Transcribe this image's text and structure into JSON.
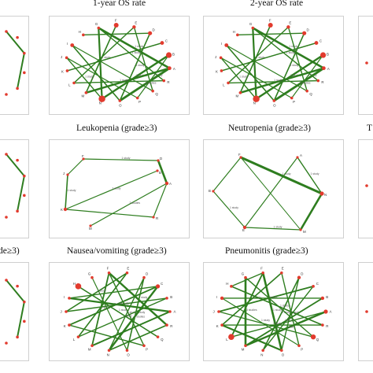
{
  "colors": {
    "edge": "#2e7d1f",
    "node": "#e23b2e",
    "frame": "#cfcfcf"
  },
  "titles": {
    "os1": "1-year OS rate",
    "os2": "2-year OS rate",
    "leukopenia": "Leukopenia (grade≥3)",
    "neutropenia": "Neutropenia (grade≥3)",
    "right_partial": "T",
    "left_partial": "de≥3)",
    "nausea": "Nausea/vomiting (grade≥3)",
    "pneumonitis": "Pneumonitis (grade≥3)"
  },
  "edge_labels": {
    "one_study": "1 study",
    "two_studies": "2 studies",
    "three_studies": "3 studies"
  },
  "panels": [
    {
      "name": "panel-1-year-os",
      "title_key": "os1",
      "nodes": [
        "G",
        "F",
        "E",
        "D",
        "C",
        "B",
        "A",
        "R",
        "Q",
        "P",
        "O",
        "N",
        "M",
        "L",
        "K",
        "J",
        "I",
        "H"
      ]
    },
    {
      "name": "panel-2-year-os",
      "title_key": "os2",
      "nodes": [
        "G",
        "F",
        "E",
        "D",
        "C",
        "B",
        "A",
        "R",
        "Q",
        "P",
        "O",
        "N",
        "M",
        "L",
        "K",
        "J",
        "I",
        "H"
      ]
    },
    {
      "name": "panel-leukopenia",
      "title_key": "leukopenia",
      "nodes": [
        "F",
        "D",
        "A",
        "R",
        "M",
        "K",
        "J",
        "B"
      ]
    },
    {
      "name": "panel-neutropenia",
      "title_key": "neutropenia",
      "nodes": [
        "F",
        "A",
        "N",
        "M",
        "E",
        "B"
      ]
    },
    {
      "name": "panel-nausea",
      "title_key": "nausea",
      "nodes": [
        "F",
        "E",
        "D",
        "C",
        "B",
        "A",
        "R",
        "Q",
        "P",
        "O",
        "N",
        "M",
        "L",
        "K",
        "J",
        "I",
        "H",
        "G"
      ]
    },
    {
      "name": "panel-pneumonitis",
      "title_key": "pneumonitis",
      "nodes": [
        "F",
        "E",
        "D",
        "C",
        "B",
        "A",
        "R",
        "Q",
        "P",
        "O",
        "N",
        "M",
        "L",
        "K",
        "J",
        "I",
        "H",
        "G"
      ]
    }
  ]
}
